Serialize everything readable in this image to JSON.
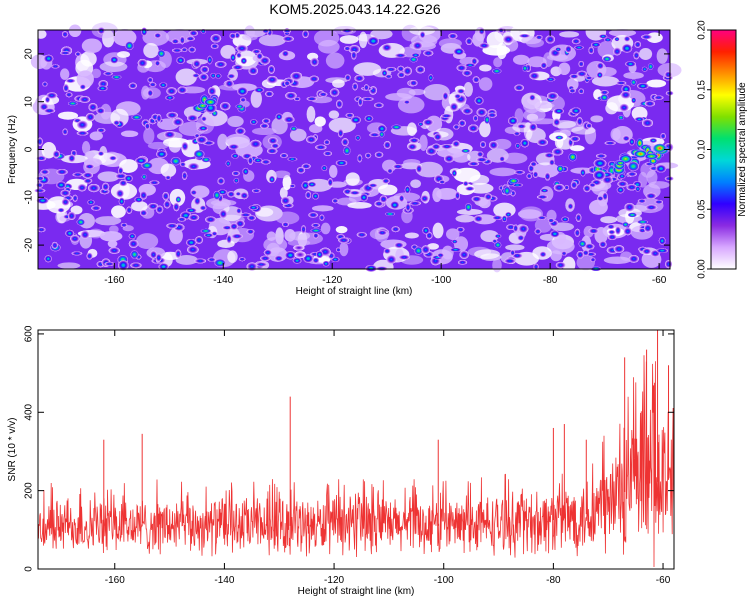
{
  "title": "KOM5.2025.043.14.22.G26",
  "chart_data": [
    {
      "type": "heatmap",
      "xlabel": "Height of straight line (km)",
      "ylabel": "Frequency (Hz)",
      "xlim": [
        -174,
        -58
      ],
      "ylim": [
        -25,
        25
      ],
      "xticks": [
        -160,
        -140,
        -120,
        -100,
        -80,
        -60
      ],
      "yticks": [
        -20,
        -10,
        0,
        10,
        20
      ],
      "colorbar": {
        "label": "Normalized spectral amplitude",
        "range": [
          0.0,
          0.2
        ],
        "ticks": [
          "0.00",
          "0.05",
          "0.10",
          "0.15",
          "0.20"
        ],
        "colors": [
          "#ffffff",
          "#d8a8ff",
          "#8a2be2",
          "#3000ff",
          "#0080ff",
          "#00d8d8",
          "#00e070",
          "#80e000",
          "#ffff00",
          "#ff9000",
          "#ff2000",
          "#ff0080"
        ]
      },
      "features": [
        {
          "x": -143,
          "y": 10,
          "value": 0.14
        },
        {
          "x": -157,
          "y": -23,
          "value": 0.09
        },
        {
          "x": -125,
          "y": -22,
          "value": 0.07
        },
        {
          "x": -88,
          "y": -8,
          "value": 0.12
        },
        {
          "x": -77,
          "y": -3,
          "value": 0.12
        },
        {
          "x": -70,
          "y": -4,
          "value": 0.14
        },
        {
          "x": -66,
          "y": -3,
          "value": 0.18
        },
        {
          "x": -63,
          "y": 0,
          "value": 0.19
        },
        {
          "x": -60,
          "y": -1,
          "value": 0.2
        }
      ]
    },
    {
      "type": "line",
      "xlabel": "Height of straight line (km)",
      "ylabel": "SNR (10 * v/v)",
      "xlim": [
        -174,
        -58
      ],
      "ylim": [
        0,
        610
      ],
      "xticks": [
        -160,
        -140,
        -120,
        -100,
        -80,
        -60
      ],
      "yticks": [
        0,
        200,
        400,
        600
      ],
      "color": "#ee3333",
      "envelope": {
        "x": [
          -174,
          -160,
          -150,
          -140,
          -130,
          -120,
          -110,
          -100,
          -90,
          -80,
          -75,
          -70,
          -68,
          -65,
          -62,
          -60,
          -58
        ],
        "baseline": [
          110,
          110,
          110,
          110,
          110,
          110,
          110,
          110,
          115,
          125,
          135,
          160,
          190,
          210,
          220,
          225,
          230
        ],
        "spread": [
          70,
          75,
          75,
          75,
          75,
          75,
          75,
          75,
          80,
          90,
          100,
          140,
          170,
          200,
          220,
          210,
          200
        ]
      },
      "peaks": [
        {
          "x": -162,
          "y": 330
        },
        {
          "x": -155,
          "y": 345
        },
        {
          "x": -128,
          "y": 440
        },
        {
          "x": -101,
          "y": 330
        },
        {
          "x": -80,
          "y": 360
        },
        {
          "x": -78,
          "y": 370
        },
        {
          "x": -74,
          "y": 330
        },
        {
          "x": -67,
          "y": 540
        },
        {
          "x": -63,
          "y": 560
        },
        {
          "x": -61,
          "y": 610
        },
        {
          "x": -59,
          "y": 520
        }
      ]
    }
  ]
}
